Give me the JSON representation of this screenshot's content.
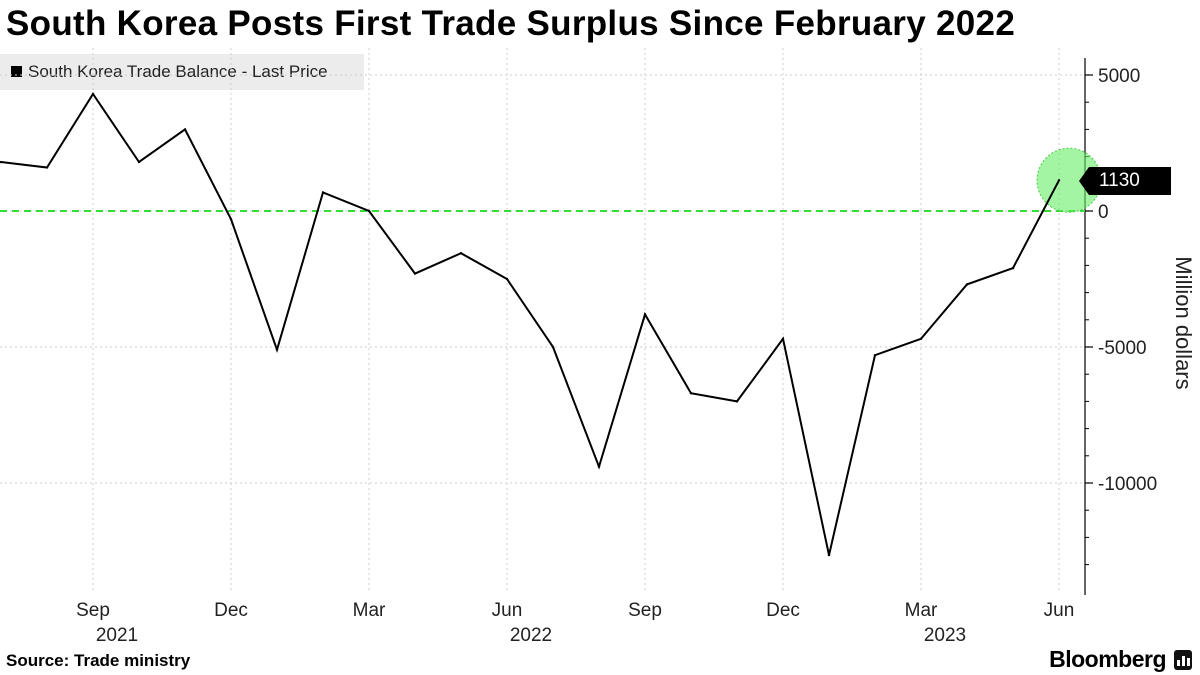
{
  "title": "South Korea Posts First Trade Surplus Since February 2022",
  "source": "Source: Trade ministry",
  "brand": "Bloomberg",
  "last_value_label": "1130",
  "colors": {
    "line": "#000000",
    "zero_line": "#33dd33",
    "highlight": "#66ee66",
    "grid": "#cccccc",
    "legend_bg": "#ececec"
  },
  "chart_data": {
    "type": "line",
    "title": "South Korea Posts First Trade Surplus Since February 2022",
    "ylabel": "Million dollars",
    "ylim": [
      -14000,
      5500
    ],
    "yticks": [
      5000,
      0,
      -5000,
      -10000
    ],
    "ytick_labels": [
      "5000",
      "0",
      "-5000",
      "-10000"
    ],
    "grid": true,
    "legend_position": "top-left",
    "x_tick_labels": [
      {
        "month": "Sep",
        "year": "2021",
        "x": "2021-09"
      },
      {
        "month": "Dec",
        "year": "",
        "x": "2021-12"
      },
      {
        "month": "Mar",
        "year": "",
        "x": "2022-03"
      },
      {
        "month": "Jun",
        "year": "2022",
        "x": "2022-06"
      },
      {
        "month": "Sep",
        "year": "",
        "x": "2022-09"
      },
      {
        "month": "Dec",
        "year": "",
        "x": "2022-12"
      },
      {
        "month": "Mar",
        "year": "2023",
        "x": "2023-03"
      },
      {
        "month": "Jun",
        "year": "",
        "x": "2023-06"
      }
    ],
    "series": [
      {
        "name": "South Korea Trade Balance - Last Price",
        "x": [
          "2021-07",
          "2021-08",
          "2021-09",
          "2021-10",
          "2021-11",
          "2021-12",
          "2022-01",
          "2022-02",
          "2022-03",
          "2022-04",
          "2022-05",
          "2022-06",
          "2022-07",
          "2022-08",
          "2022-09",
          "2022-10",
          "2022-11",
          "2022-12",
          "2023-01",
          "2023-02",
          "2023-03",
          "2023-04",
          "2023-05",
          "2023-06"
        ],
        "values": [
          1800,
          1600,
          4300,
          1800,
          3000,
          -300,
          -5100,
          680,
          0,
          -2300,
          -1550,
          -2500,
          -5000,
          -9400,
          -3800,
          -6700,
          -7000,
          -4700,
          -12650,
          -5300,
          -4700,
          -2700,
          -2100,
          1130
        ]
      }
    ],
    "annotations": [
      {
        "type": "last_value",
        "x": "2023-06",
        "value": 1130
      }
    ]
  }
}
